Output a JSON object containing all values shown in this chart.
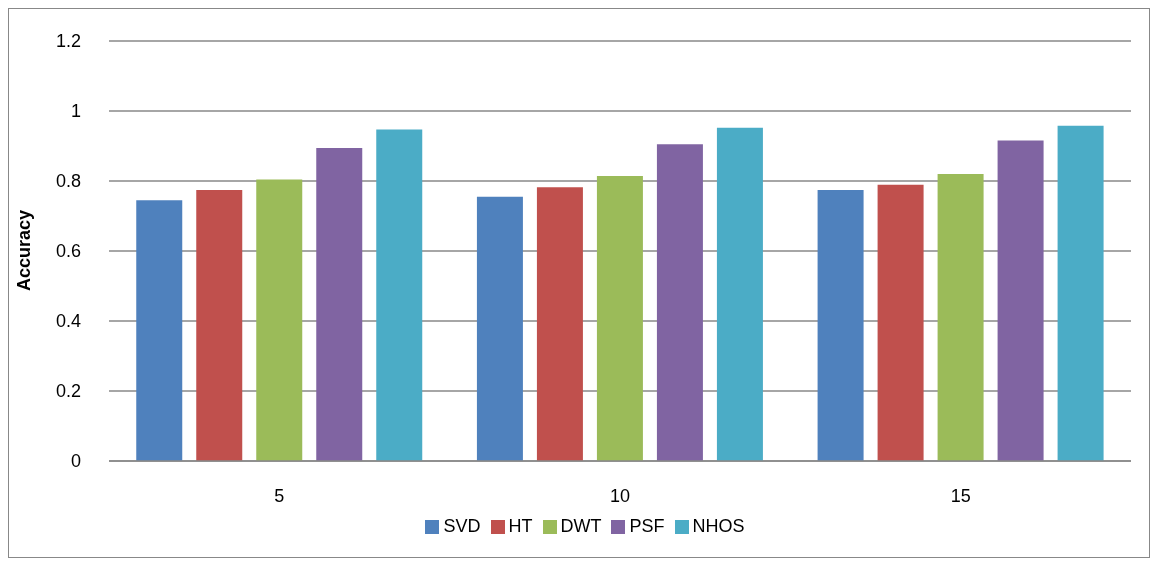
{
  "chart_data": {
    "type": "bar",
    "ylabel": "Accuracy",
    "categories": [
      "5",
      "10",
      "15"
    ],
    "series": [
      {
        "name": "SVD",
        "color": "#4f81bd",
        "values": [
          0.745,
          0.755,
          0.774
        ]
      },
      {
        "name": "HT",
        "color": "#c0504d",
        "values": [
          0.774,
          0.782,
          0.789
        ]
      },
      {
        "name": "DWT",
        "color": "#9bbb59",
        "values": [
          0.804,
          0.814,
          0.82
        ]
      },
      {
        "name": "PSF",
        "color": "#8064a2",
        "values": [
          0.894,
          0.905,
          0.916
        ]
      },
      {
        "name": "NHOS",
        "color": "#4bacc6",
        "values": [
          0.947,
          0.952,
          0.958
        ]
      }
    ],
    "ylim": [
      0,
      1.2
    ],
    "yticks": [
      0,
      0.2,
      0.4,
      0.6,
      0.8,
      1,
      1.2
    ],
    "grid": "y",
    "legend": "bottom"
  }
}
